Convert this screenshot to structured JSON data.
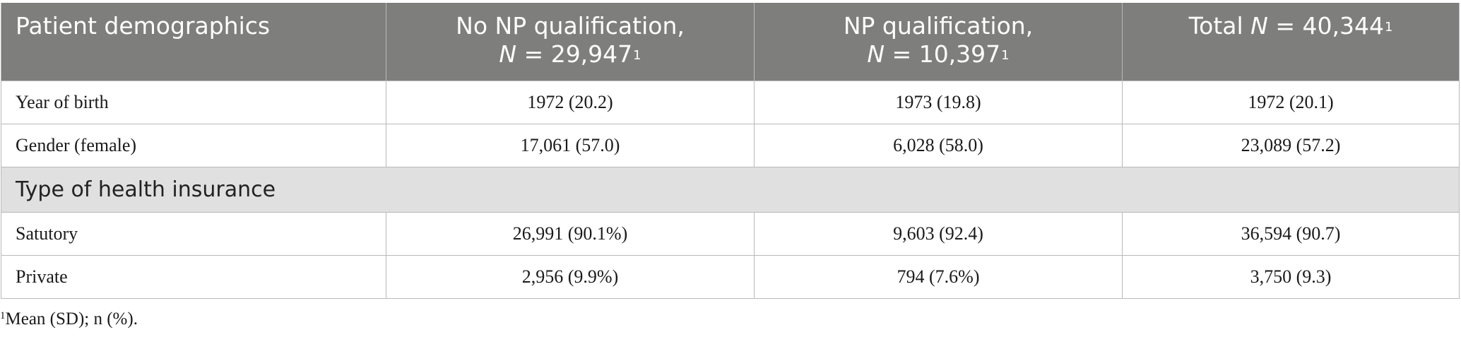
{
  "table": {
    "headers": [
      {
        "line1": "Patient demographics"
      },
      {
        "line1": "No NP qualification,",
        "n_label": "N",
        "n_value": " = 29,947",
        "sup": "1"
      },
      {
        "line1": "NP qualification,",
        "n_label": "N",
        "n_value": " = 10,397",
        "sup": "1"
      },
      {
        "prefix": "Total ",
        "n_label": "N",
        "n_value": " = 40,344",
        "sup": "1"
      }
    ],
    "rows": [
      {
        "label": "Year of birth",
        "values": [
          "1972 (20.2)",
          "1973 (19.8)",
          "1972 (20.1)"
        ]
      },
      {
        "label": "Gender (female)",
        "values": [
          "17,061 (57.0)",
          "6,028 (58.0)",
          "23,089 (57.2)"
        ]
      }
    ],
    "section": "Type of health insurance",
    "section_rows": [
      {
        "label": "Satutory",
        "values": [
          "26,991 (90.1%)",
          "9,603 (92.4)",
          "36,594 (90.7)"
        ]
      },
      {
        "label": "Private",
        "values": [
          "2,956 (9.9%)",
          "794 (7.6%)",
          "3,750 (9.3)"
        ]
      }
    ]
  },
  "footnote": {
    "marker": "1",
    "text": "Mean (SD); n (%)."
  }
}
